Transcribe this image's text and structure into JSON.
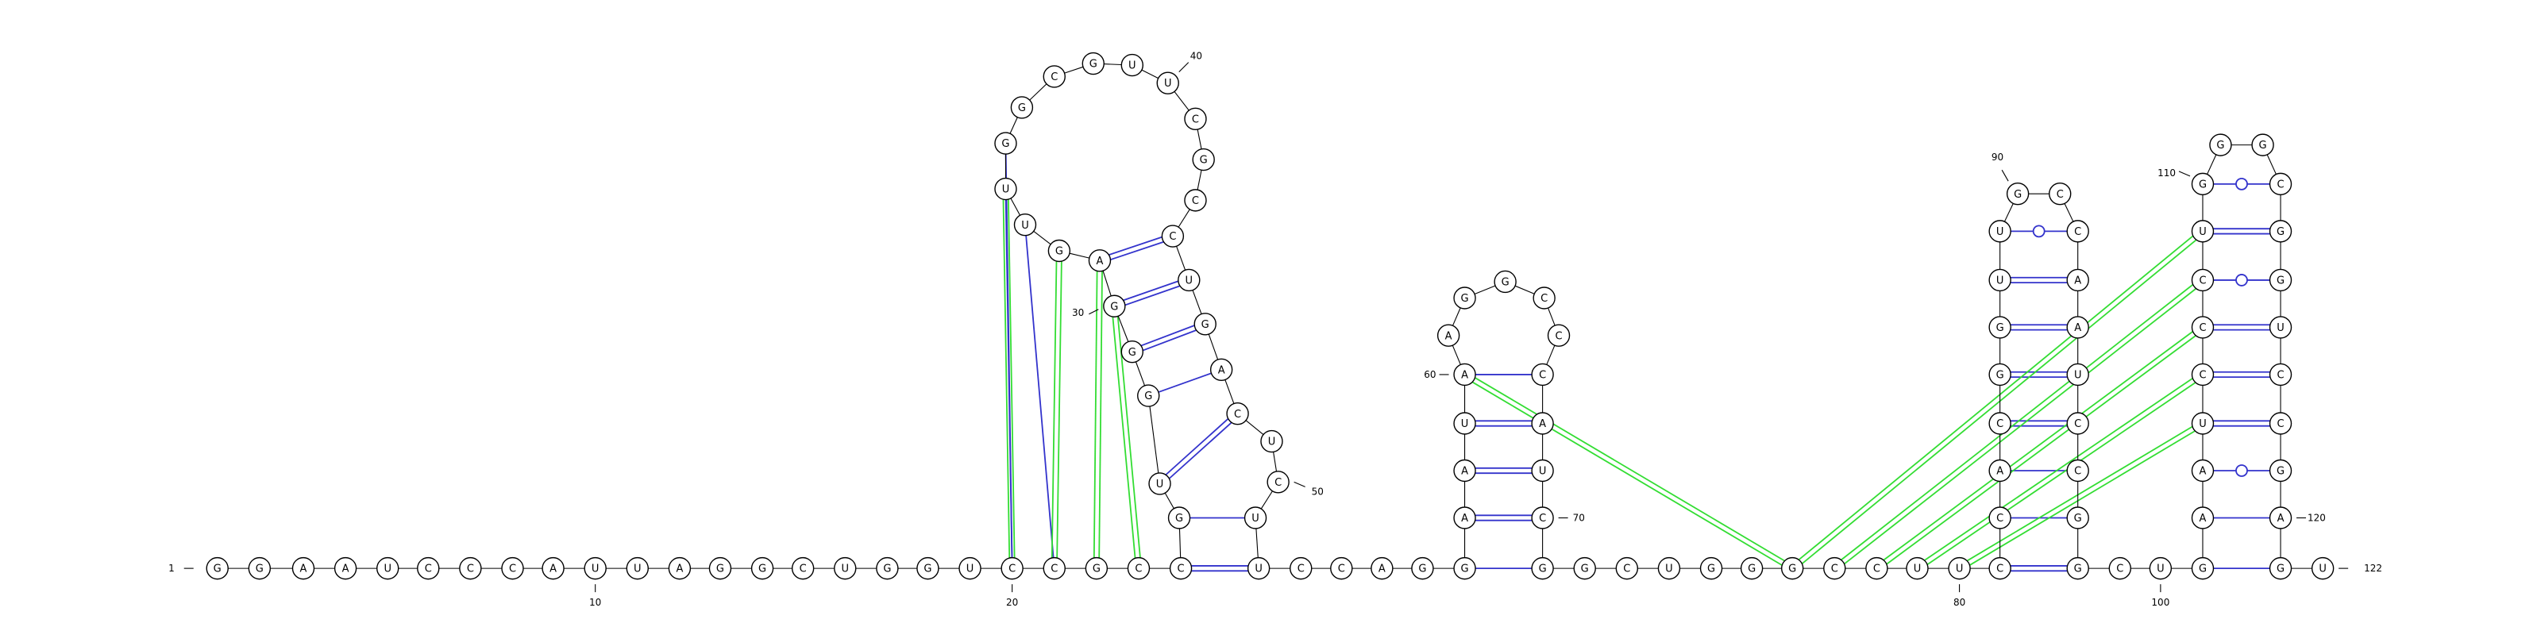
{
  "sequence": "GGAAUCCCAUUAGGCUGGUCCGCCGUGGGAGUUGGCGUUCGCCUGACUCUUCCAGGAAUAAGGCCCAUCGGCUGGGCCUUCCACGGUUGCCAAUCCGGCUGAAUCCCUGGGCGGUCCGAGUC",
  "start_label": "1",
  "end_label": "122",
  "number_labels": [
    "10",
    "20",
    "30",
    "40",
    "50",
    "60",
    "70",
    "80",
    "90",
    "100",
    "110",
    "120"
  ],
  "pair_style": {
    "canonical_color": "#3333cc",
    "pseudoknot_color": "#33dd33",
    "wobble_marker": "circle"
  }
}
